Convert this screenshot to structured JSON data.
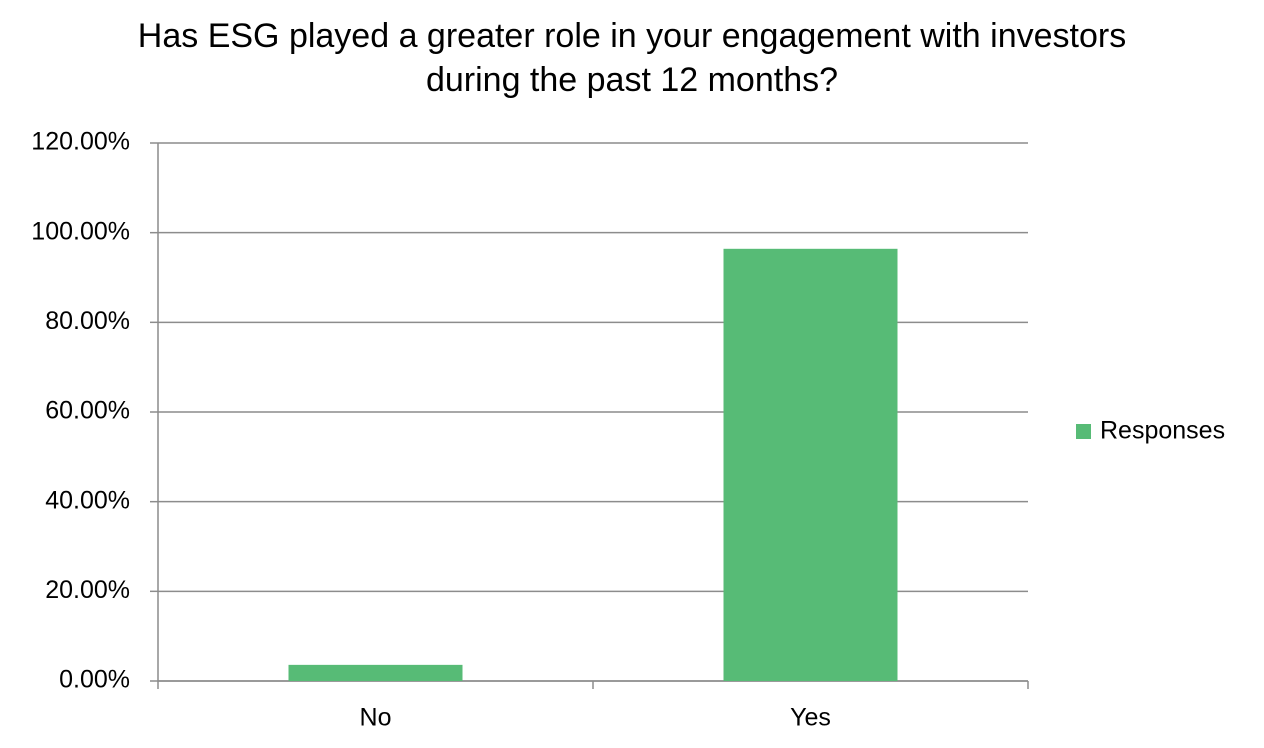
{
  "chart_data": {
    "type": "bar",
    "title": "Has ESG played a greater role in your engagement with investors during the past 12 months?",
    "categories": [
      "No",
      "Yes"
    ],
    "series": [
      {
        "name": "Responses",
        "color": "#57bb76",
        "values": [
          3.6,
          96.4
        ]
      }
    ],
    "ylim": [
      0,
      120
    ],
    "yticks": [
      {
        "value": 0,
        "label": "0.00%"
      },
      {
        "value": 20,
        "label": "20.00%"
      },
      {
        "value": 40,
        "label": "40.00%"
      },
      {
        "value": 60,
        "label": "60.00%"
      },
      {
        "value": 80,
        "label": "80.00%"
      },
      {
        "value": 100,
        "label": "100.00%"
      },
      {
        "value": 120,
        "label": "120.00%"
      }
    ],
    "grid": true,
    "legend": "right"
  }
}
